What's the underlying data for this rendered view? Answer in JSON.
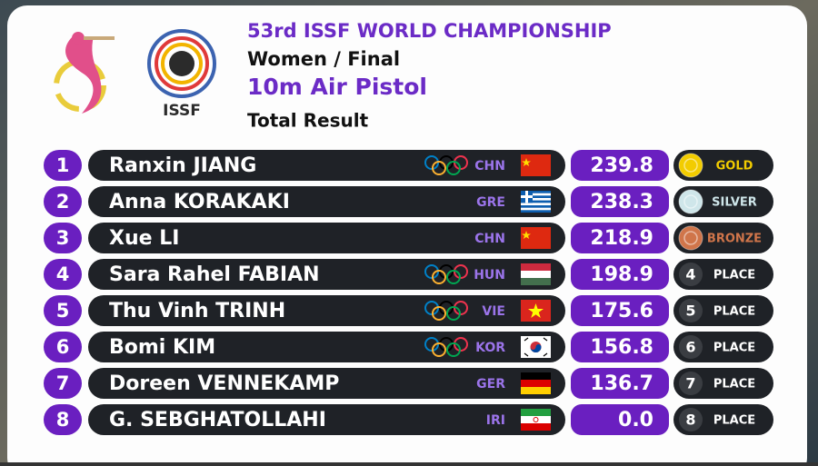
{
  "header": {
    "title": "53rd ISSF WORLD CHAMPIONSHIP",
    "event": "Women / Final",
    "discipline": "10m Air Pistol",
    "stage": "Total Result",
    "logo_text": "ISSF"
  },
  "rows": [
    {
      "rank": "1",
      "name": "Ranxin JIANG",
      "country": "CHN",
      "olympic_rings": true,
      "score": "239.8",
      "award": "GOLD",
      "badge_color": "#f2cc00"
    },
    {
      "rank": "2",
      "name": "Anna KORAKAKI",
      "country": "GRE",
      "olympic_rings": false,
      "score": "238.3",
      "award": "SILVER",
      "badge_color": "#cfe6ea"
    },
    {
      "rank": "3",
      "name": "Xue LI",
      "country": "CHN",
      "olympic_rings": false,
      "score": "218.9",
      "award": "BRONZE",
      "badge_color": "#d0754a"
    },
    {
      "rank": "4",
      "name": "Sara Rahel FABIAN",
      "country": "HUN",
      "olympic_rings": true,
      "score": "198.9",
      "award": "PLACE",
      "badge_color": null
    },
    {
      "rank": "5",
      "name": "Thu Vinh TRINH",
      "country": "VIE",
      "olympic_rings": true,
      "score": "175.6",
      "award": "PLACE",
      "badge_color": null
    },
    {
      "rank": "6",
      "name": "Bomi KIM",
      "country": "KOR",
      "olympic_rings": true,
      "score": "156.8",
      "award": "PLACE",
      "badge_color": null
    },
    {
      "rank": "7",
      "name": "Doreen VENNEKAMP",
      "country": "GER",
      "olympic_rings": false,
      "score": "136.7",
      "award": "PLACE",
      "badge_color": null
    },
    {
      "rank": "8",
      "name": "G. SEBGHATOLLAHI",
      "country": "IRI",
      "olympic_rings": false,
      "score": "0.0",
      "award": "PLACE",
      "badge_color": null
    }
  ]
}
